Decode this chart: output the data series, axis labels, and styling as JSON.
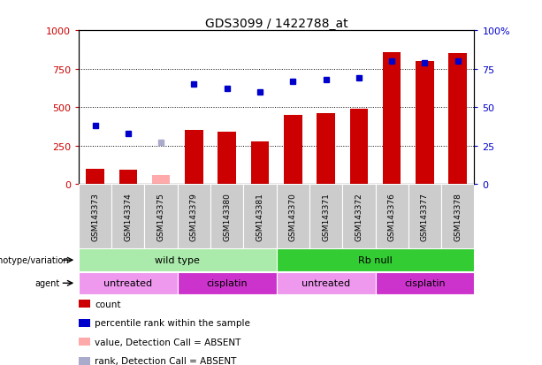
{
  "title": "GDS3099 / 1422788_at",
  "samples": [
    "GSM143373",
    "GSM143374",
    "GSM143375",
    "GSM143379",
    "GSM143380",
    "GSM143381",
    "GSM143370",
    "GSM143371",
    "GSM143372",
    "GSM143376",
    "GSM143377",
    "GSM143378"
  ],
  "count_values": [
    100,
    95,
    60,
    350,
    340,
    275,
    450,
    460,
    490,
    860,
    800,
    850
  ],
  "count_absent": [
    false,
    false,
    true,
    false,
    false,
    false,
    false,
    false,
    false,
    false,
    false,
    false
  ],
  "rank_values": [
    38,
    33,
    27,
    65,
    62,
    60,
    67,
    68,
    69,
    80,
    79,
    80
  ],
  "rank_absent": [
    false,
    false,
    true,
    false,
    false,
    false,
    false,
    false,
    false,
    false,
    false,
    false
  ],
  "bar_color_normal": "#cc0000",
  "bar_color_absent": "#ffaaaa",
  "dot_color_normal": "#0000cc",
  "dot_color_absent": "#aaaacc",
  "genotype_groups": [
    {
      "label": "wild type",
      "start": 0,
      "end": 6,
      "color": "#aaeaaa"
    },
    {
      "label": "Rb null",
      "start": 6,
      "end": 12,
      "color": "#33cc33"
    }
  ],
  "agent_groups": [
    {
      "label": "untreated",
      "start": 0,
      "end": 3,
      "color": "#ee99ee"
    },
    {
      "label": "cisplatin",
      "start": 3,
      "end": 6,
      "color": "#cc33cc"
    },
    {
      "label": "untreated",
      "start": 6,
      "end": 9,
      "color": "#ee99ee"
    },
    {
      "label": "cisplatin",
      "start": 9,
      "end": 12,
      "color": "#cc33cc"
    }
  ],
  "ylim_left": [
    0,
    1000
  ],
  "ylim_right": [
    0,
    100
  ],
  "yticks_left": [
    0,
    250,
    500,
    750,
    1000
  ],
  "yticks_right": [
    0,
    25,
    50,
    75,
    100
  ],
  "bg_color": "#ffffff",
  "gray_col_bg": "#cccccc",
  "legend_items": [
    {
      "label": "count",
      "color": "#cc0000"
    },
    {
      "label": "percentile rank within the sample",
      "color": "#0000cc"
    },
    {
      "label": "value, Detection Call = ABSENT",
      "color": "#ffaaaa"
    },
    {
      "label": "rank, Detection Call = ABSENT",
      "color": "#aaaacc"
    }
  ]
}
